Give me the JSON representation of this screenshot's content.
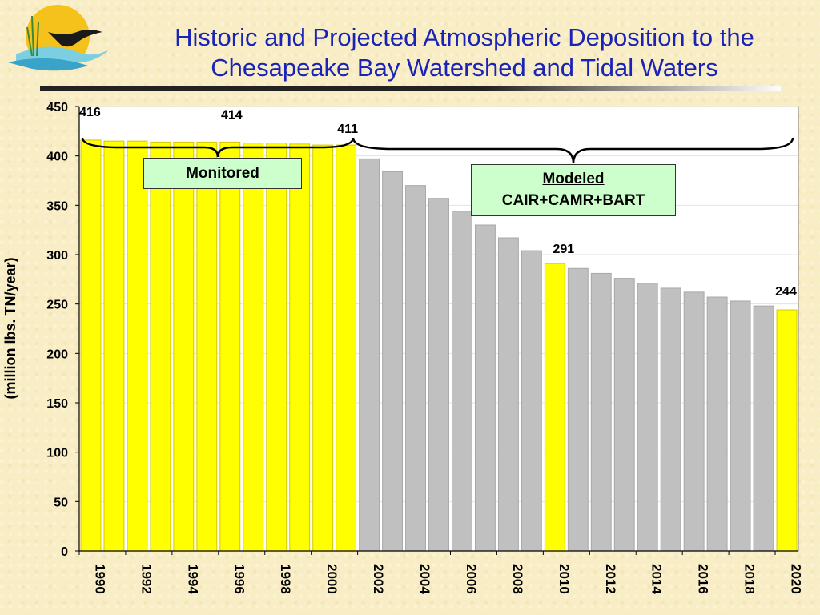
{
  "title_line1": "Historic and Projected Atmospheric Deposition to the",
  "title_line2": "Chesapeake Bay Watershed and Tidal Waters",
  "monitored_label": "Monitored",
  "modeled_label": "Modeled",
  "modeled_sub": "CAIR+CAMR+BART",
  "colors": {
    "highlight": "#ffff00",
    "gray": "#c0c0c0",
    "title": "#1a23b8",
    "callout_bg": "#ccffcc"
  },
  "chart_data": {
    "type": "bar",
    "title": "Historic and Projected Atmospheric Deposition to the Chesapeake Bay Watershed and Tidal Waters",
    "xlabel": "",
    "ylabel": "(million lbs. TN/year)",
    "ylim": [
      0,
      450
    ],
    "yticks": [
      0,
      50,
      100,
      150,
      200,
      250,
      300,
      350,
      400,
      450
    ],
    "grid": true,
    "categories": [
      "1990",
      "1991",
      "1992",
      "1993",
      "1994",
      "1995",
      "1996",
      "1997",
      "1998",
      "1999",
      "2000",
      "2001",
      "2002",
      "2003",
      "2004",
      "2005",
      "2006",
      "2007",
      "2008",
      "2009",
      "2010",
      "2011",
      "2012",
      "2013",
      "2014",
      "2015",
      "2016",
      "2017",
      "2018",
      "2019",
      "2020"
    ],
    "xtick_labels": [
      "1990",
      "1992",
      "1994",
      "1996",
      "1998",
      "2000",
      "2002",
      "2004",
      "2006",
      "2008",
      "2010",
      "2012",
      "2014",
      "2016",
      "2018",
      "2020"
    ],
    "values": [
      416,
      415,
      415,
      414,
      414,
      414,
      414,
      413,
      413,
      412,
      411,
      411,
      397,
      384,
      370,
      357,
      344,
      330,
      317,
      304,
      291,
      286,
      281,
      276,
      271,
      266,
      262,
      257,
      253,
      248,
      244
    ],
    "bar_colors": [
      "yellow",
      "yellow",
      "yellow",
      "yellow",
      "yellow",
      "yellow",
      "yellow",
      "yellow",
      "yellow",
      "yellow",
      "yellow",
      "yellow",
      "gray",
      "gray",
      "gray",
      "gray",
      "gray",
      "gray",
      "gray",
      "gray",
      "yellow",
      "gray",
      "gray",
      "gray",
      "gray",
      "gray",
      "gray",
      "gray",
      "gray",
      "gray",
      "yellow"
    ],
    "data_labels": [
      {
        "index": 0,
        "text": "416"
      },
      {
        "index": 6,
        "text": "414"
      },
      {
        "index": 11,
        "text": "411"
      },
      {
        "index": 20,
        "text": "291"
      },
      {
        "index": 30,
        "text": "244"
      }
    ]
  }
}
